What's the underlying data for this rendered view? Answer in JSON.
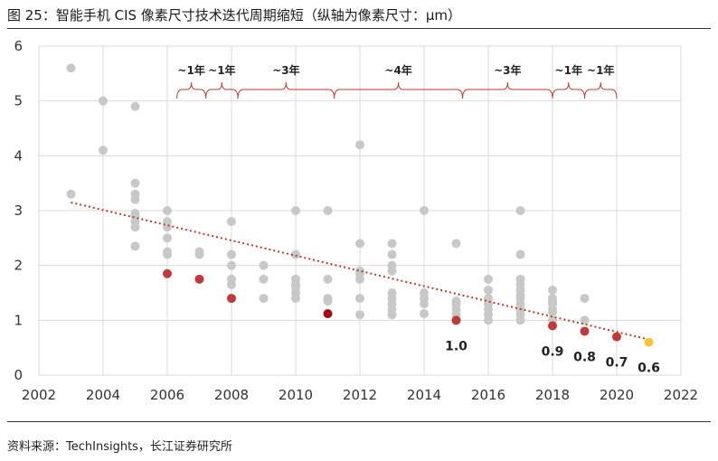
{
  "figure": {
    "title": "图  25：智能手机 CIS 像素尺寸技术迭代周期缩短（纵轴为像素尺寸：μm）",
    "source": "资料来源：TechInsights，长江证券研究所"
  },
  "colors": {
    "grey_point": "#c8c8c8",
    "red_point": "#c0393b",
    "darkred_point": "#a30f12",
    "yellow_point": "#f5c43c",
    "trend": "#c0392b",
    "brace": "#c0392b",
    "grid": "#d9d9d9"
  },
  "chart_data": {
    "type": "scatter",
    "xlim": [
      2002,
      2022
    ],
    "ylim": [
      0,
      6
    ],
    "x_ticks": [
      "2002",
      "2004",
      "2006",
      "2008",
      "2010",
      "2012",
      "2014",
      "2016",
      "2018",
      "2020",
      "2022"
    ],
    "y_ticks": [
      "0",
      "1",
      "2",
      "3",
      "4",
      "5",
      "6"
    ],
    "grid": "vertical and horizontal",
    "series": [
      {
        "role": "all",
        "points": [
          [
            2003,
            5.6
          ],
          [
            2003,
            3.3
          ],
          [
            2004,
            5.0
          ],
          [
            2004,
            4.1
          ],
          [
            2005,
            4.9
          ],
          [
            2005,
            3.5
          ],
          [
            2005,
            3.3
          ],
          [
            2005,
            3.2
          ],
          [
            2005,
            2.95
          ],
          [
            2005,
            2.9
          ],
          [
            2005,
            2.8
          ],
          [
            2005,
            2.7
          ],
          [
            2005,
            2.35
          ],
          [
            2006,
            3.0
          ],
          [
            2006,
            2.8
          ],
          [
            2006,
            2.7
          ],
          [
            2006,
            2.5
          ],
          [
            2006,
            2.25
          ],
          [
            2006,
            2.2
          ],
          [
            2007,
            2.25
          ],
          [
            2007,
            2.2
          ],
          [
            2008,
            2.8
          ],
          [
            2008,
            2.2
          ],
          [
            2008,
            2.0
          ],
          [
            2008,
            1.75
          ],
          [
            2008,
            1.65
          ],
          [
            2009,
            2.0
          ],
          [
            2009,
            1.75
          ],
          [
            2009,
            1.4
          ],
          [
            2010,
            3.0
          ],
          [
            2010,
            2.2
          ],
          [
            2010,
            1.75
          ],
          [
            2010,
            1.65
          ],
          [
            2010,
            1.6
          ],
          [
            2010,
            1.5
          ],
          [
            2010,
            1.4
          ],
          [
            2011,
            3.0
          ],
          [
            2011,
            1.75
          ],
          [
            2011,
            1.4
          ],
          [
            2011,
            1.35
          ],
          [
            2012,
            4.2
          ],
          [
            2012,
            2.4
          ],
          [
            2012,
            1.9
          ],
          [
            2012,
            1.85
          ],
          [
            2012,
            1.75
          ],
          [
            2012,
            1.4
          ],
          [
            2012,
            1.1
          ],
          [
            2013,
            2.4
          ],
          [
            2013,
            2.2
          ],
          [
            2013,
            2.0
          ],
          [
            2013,
            1.9
          ],
          [
            2013,
            1.5
          ],
          [
            2013,
            1.4
          ],
          [
            2013,
            1.3
          ],
          [
            2013,
            1.2
          ],
          [
            2013,
            1.1
          ],
          [
            2014,
            3.0
          ],
          [
            2014,
            1.5
          ],
          [
            2014,
            1.4
          ],
          [
            2014,
            1.3
          ],
          [
            2014,
            1.12
          ],
          [
            2015,
            2.4
          ],
          [
            2015,
            1.35
          ],
          [
            2015,
            1.3
          ],
          [
            2015,
            1.2
          ],
          [
            2015,
            1.1
          ],
          [
            2016,
            1.75
          ],
          [
            2016,
            1.55
          ],
          [
            2016,
            1.4
          ],
          [
            2016,
            1.3
          ],
          [
            2016,
            1.2
          ],
          [
            2016,
            1.1
          ],
          [
            2016,
            1.0
          ],
          [
            2017,
            3.0
          ],
          [
            2017,
            2.2
          ],
          [
            2017,
            1.75
          ],
          [
            2017,
            1.65
          ],
          [
            2017,
            1.55
          ],
          [
            2017,
            1.45
          ],
          [
            2017,
            1.4
          ],
          [
            2017,
            1.3
          ],
          [
            2017,
            1.2
          ],
          [
            2017,
            1.1
          ],
          [
            2017,
            1.0
          ],
          [
            2018,
            1.55
          ],
          [
            2018,
            1.4
          ],
          [
            2018,
            1.35
          ],
          [
            2018,
            1.3
          ],
          [
            2018,
            1.2
          ],
          [
            2018,
            1.15
          ],
          [
            2018,
            1.0
          ],
          [
            2019,
            1.4
          ],
          [
            2019,
            1.0
          ]
        ]
      },
      {
        "role": "highlighted",
        "points": [
          [
            2006,
            1.85
          ],
          [
            2007,
            1.75
          ],
          [
            2008,
            1.4
          ],
          [
            2011,
            1.12
          ],
          [
            2015,
            1.0
          ],
          [
            2018,
            0.9
          ],
          [
            2019,
            0.8
          ],
          [
            2020,
            0.7
          ],
          [
            2021,
            0.6
          ]
        ],
        "point_colors": [
          "red_point",
          "red_point",
          "red_point",
          "darkred_point",
          "red_point",
          "red_point",
          "red_point",
          "red_point",
          "yellow_point"
        ]
      }
    ],
    "trendline": {
      "style": "dotted",
      "from": [
        2003,
        3.15
      ],
      "to": [
        2021,
        0.65
      ]
    },
    "data_labels": [
      {
        "x": 2015,
        "y": 1.0,
        "text": "1.0"
      },
      {
        "x": 2018,
        "y": 0.9,
        "text": "0.9"
      },
      {
        "x": 2019,
        "y": 0.8,
        "text": "0.8"
      },
      {
        "x": 2020,
        "y": 0.7,
        "text": "0.7"
      },
      {
        "x": 2021,
        "y": 0.6,
        "text": "0.6"
      }
    ],
    "annotations": [
      {
        "from": 2006.3,
        "to": 2007.2,
        "text": "~1年"
      },
      {
        "from": 2007.2,
        "to": 2008.2,
        "text": "~1年"
      },
      {
        "from": 2008.2,
        "to": 2011.2,
        "text": "~3年"
      },
      {
        "from": 2011.2,
        "to": 2015.2,
        "text": "~4年"
      },
      {
        "from": 2015.2,
        "to": 2018.0,
        "text": "~3年"
      },
      {
        "from": 2018.0,
        "to": 2019.0,
        "text": "~1年"
      },
      {
        "from": 2019.0,
        "to": 2020.0,
        "text": "~1年"
      }
    ]
  }
}
